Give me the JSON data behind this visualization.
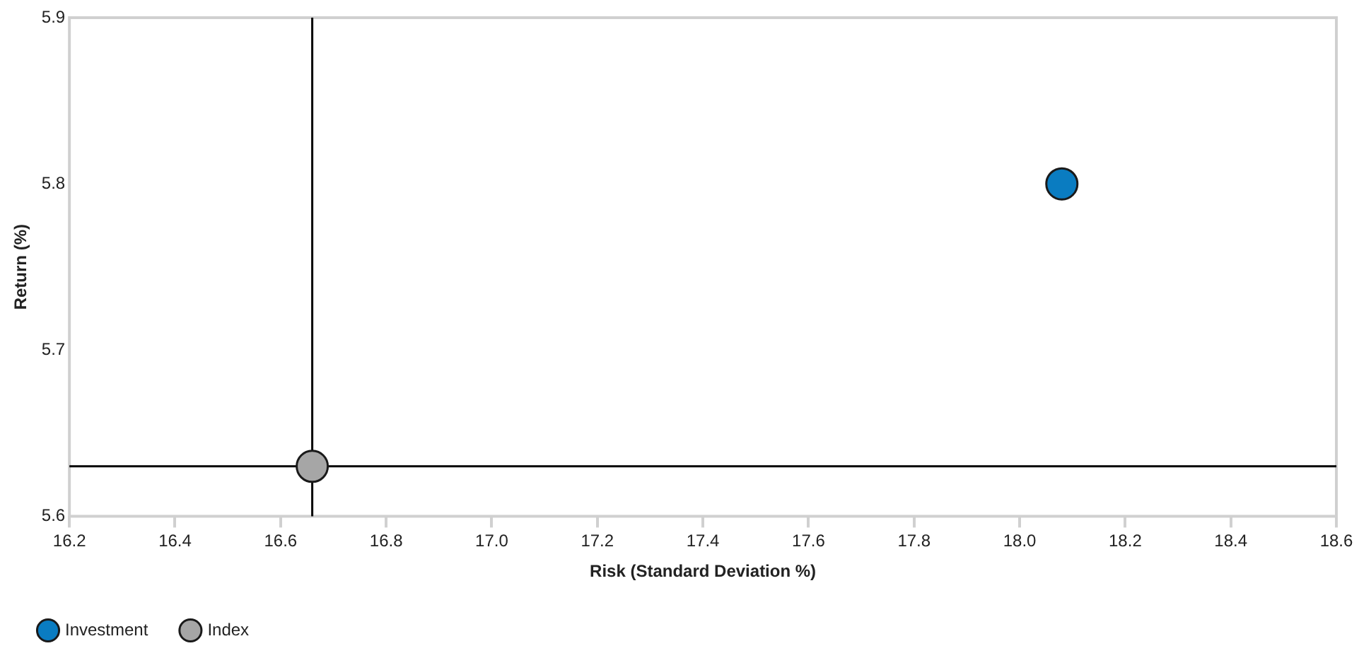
{
  "chart_data": {
    "type": "scatter",
    "xlabel": "Risk (Standard Deviation %)",
    "ylabel": "Return (%)",
    "xlim": [
      16.2,
      18.6
    ],
    "xticks": [
      {
        "value": 16.2,
        "label": "16.2"
      },
      {
        "value": 16.4,
        "label": "16.4"
      },
      {
        "value": 16.6,
        "label": "16.6"
      },
      {
        "value": 16.8,
        "label": "16.8"
      },
      {
        "value": 17.0,
        "label": "17.0"
      },
      {
        "value": 17.2,
        "label": "17.2"
      },
      {
        "value": 17.4,
        "label": "17.4"
      },
      {
        "value": 17.6,
        "label": "17.6"
      },
      {
        "value": 17.8,
        "label": "17.8"
      },
      {
        "value": 18.0,
        "label": "18.0"
      },
      {
        "value": 18.2,
        "label": "18.2"
      },
      {
        "value": 18.4,
        "label": "18.4"
      },
      {
        "value": 18.6,
        "label": "18.6"
      }
    ],
    "ylim": [
      5.6,
      5.9
    ],
    "yticks": [
      5.6,
      5.7,
      5.8,
      5.9
    ],
    "series": [
      {
        "name": "Investment",
        "color": "#0a7cc1",
        "x": [
          18.08
        ],
        "values": [
          5.8
        ]
      },
      {
        "name": "Index",
        "color": "#a6a6a6",
        "x": [
          16.66
        ],
        "values": [
          5.63
        ]
      }
    ],
    "ref_lines": [
      {
        "axis": "x",
        "value": 16.66,
        "color": "#000000"
      },
      {
        "axis": "y",
        "value": 5.63,
        "color": "#000000"
      }
    ],
    "grid": false,
    "legend": "bottom left",
    "marker": "circle"
  }
}
